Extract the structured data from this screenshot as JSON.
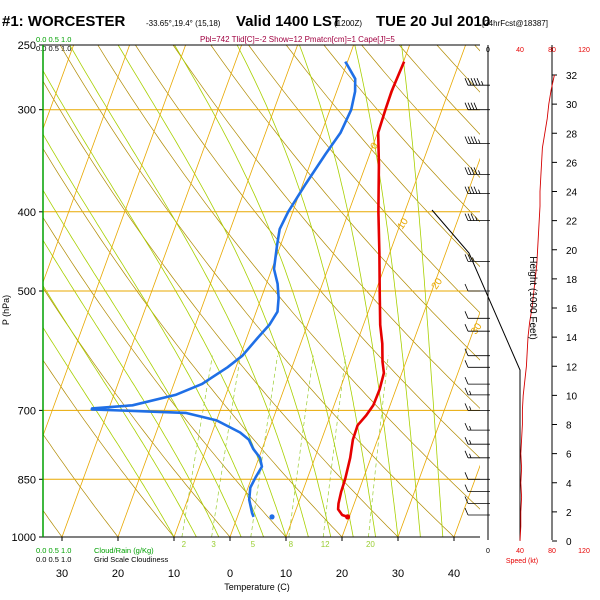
{
  "title": {
    "station": "#1: WORCESTER",
    "coords": "-33.65°,19.4° (15,18)",
    "valid": "Valid 1400 LST",
    "utc": "(1200Z)",
    "date": "TUE 20 Jul 2010",
    "forecast": "[24hrFcst@18387]",
    "indices": "Pbl=742 Tlid[C]=-2 Show=12 Pmatcn[cm]=1 Cape[J]=5"
  },
  "colors": {
    "isobar": "#e8a800",
    "isotherm": "#e8a800",
    "dry_adiabat": "#b08a00",
    "moist_adiabat": "#a8d000",
    "mixing_ratio": "#9acd32",
    "temperature": "#e60000",
    "dewpoint": "#1f6fe6",
    "height_curve": "#d40000",
    "cloud_scale": "#00a000"
  },
  "top_scales": [
    {
      "key": "water",
      "label": "0.0   0.5   1.0",
      "color": "#00a000"
    },
    {
      "key": "cloud",
      "label": "0.0   0.5   1.0",
      "color": "#000000"
    }
  ],
  "bottom_scales": [
    {
      "key": "water",
      "label": "0.0   0.5   1.0",
      "color": "#00a000"
    },
    {
      "key": "cloud",
      "label": "0.0   0.5   1.0",
      "color": "#000000"
    }
  ],
  "bottom_legend": {
    "cloud_water": "Cloud/Rain (g/Kg)",
    "grid_scale": "Grid Scale Cloudiness"
  },
  "speed_axis": {
    "top_ticks": [
      "0",
      "40",
      "80",
      "120"
    ],
    "bottom_ticks": [
      "0",
      "40",
      "80",
      "120"
    ],
    "top_colors": [
      "#000000",
      "#e60000",
      "#e60000",
      "#e60000"
    ],
    "label": "Speed (kt)"
  },
  "chart_data": {
    "type": "line",
    "xlabel": "Temperature (C)",
    "ylabel": "P (hPa)",
    "y2label": "Height (1000 Feet)",
    "x_ticks": [
      "30",
      "20",
      "10",
      "0",
      "10",
      "20",
      "30",
      "40"
    ],
    "x_tick_values": [
      -30,
      -20,
      -10,
      0,
      10,
      20,
      30,
      40
    ],
    "y_ticks": [
      "250",
      "300",
      "400",
      "500",
      "700",
      "850",
      "1000"
    ],
    "y_tick_values": [
      250,
      300,
      400,
      500,
      700,
      850,
      1000
    ],
    "y2_ticks": [
      "0",
      "2",
      "4",
      "6",
      "8",
      "10",
      "12",
      "14",
      "16",
      "18",
      "20",
      "22",
      "24",
      "26",
      "28",
      "30",
      "32"
    ],
    "xlim": [
      -33,
      47
    ],
    "ylim": [
      1000,
      250
    ],
    "y_scale": "log",
    "isotherm_labels": [
      {
        "t": -30,
        "label": "-30"
      },
      {
        "t": -20,
        "label": "-20"
      },
      {
        "t": -10,
        "label": "-10"
      },
      {
        "t": 0,
        "label": "0"
      },
      {
        "t": 10,
        "label": "10"
      },
      {
        "t": 20,
        "label": "20"
      },
      {
        "t": 30,
        "label": "30"
      }
    ],
    "mixing_ratio_labels": [
      "2",
      "3",
      "5",
      "8",
      "12",
      "20"
    ],
    "mixing_ratio_values": [
      2,
      3,
      5,
      8,
      12,
      20
    ],
    "series": [
      {
        "key": "temperature",
        "points": [
          [
            945,
            19.7
          ],
          [
            940,
            18.6
          ],
          [
            925,
            17.5
          ],
          [
            910,
            17.2
          ],
          [
            880,
            16.9
          ],
          [
            850,
            16.8
          ],
          [
            800,
            16.3
          ],
          [
            760,
            15.6
          ],
          [
            730,
            15.5
          ],
          [
            710,
            16.4
          ],
          [
            690,
            17.0
          ],
          [
            660,
            17.1
          ],
          [
            630,
            16.8
          ],
          [
            610,
            15.8
          ],
          [
            580,
            14.6
          ],
          [
            550,
            13.0
          ],
          [
            500,
            10.7
          ],
          [
            450,
            8.2
          ],
          [
            400,
            5.3
          ],
          [
            350,
            2.3
          ],
          [
            320,
            0.1
          ],
          [
            300,
            -0.1
          ],
          [
            285,
            -0.2
          ],
          [
            270,
            0.0
          ],
          [
            262,
            0.1
          ]
        ]
      },
      {
        "key": "dewpoint",
        "points": [
          [
            945,
            2.9
          ],
          [
            935,
            2.4
          ],
          [
            900,
            1.0
          ],
          [
            870,
            0.4
          ],
          [
            845,
            0.7
          ],
          [
            820,
            1.1
          ],
          [
            800,
            0.2
          ],
          [
            780,
            -1.6
          ],
          [
            760,
            -3.0
          ],
          [
            745,
            -5.0
          ],
          [
            720,
            -10.0
          ],
          [
            705,
            -16.0
          ],
          [
            698,
            -33.0
          ],
          [
            696,
            -33.0
          ],
          [
            690,
            -26.0
          ],
          [
            670,
            -19.0
          ],
          [
            650,
            -15.0
          ],
          [
            620,
            -11.5
          ],
          [
            600,
            -9.6
          ],
          [
            570,
            -8.0
          ],
          [
            550,
            -6.8
          ],
          [
            530,
            -6.2
          ],
          [
            510,
            -6.9
          ],
          [
            490,
            -8.0
          ],
          [
            470,
            -9.6
          ],
          [
            440,
            -10.6
          ],
          [
            420,
            -11.2
          ],
          [
            400,
            -10.8
          ],
          [
            370,
            -9.5
          ],
          [
            340,
            -7.9
          ],
          [
            320,
            -6.6
          ],
          [
            300,
            -6.2
          ],
          [
            285,
            -6.7
          ],
          [
            275,
            -7.5
          ],
          [
            265,
            -9.7
          ],
          [
            262,
            -10.4
          ]
        ]
      }
    ],
    "surface_dewpoint": [
      945,
      6.2
    ],
    "height_curve_speed": [
      [
        0,
        40
      ],
      [
        1,
        41
      ],
      [
        2,
        41
      ],
      [
        3,
        42
      ],
      [
        4,
        41
      ],
      [
        5,
        42
      ],
      [
        6,
        41
      ],
      [
        7,
        42
      ],
      [
        8,
        43
      ],
      [
        9,
        43
      ],
      [
        10,
        44
      ],
      [
        11,
        46
      ],
      [
        12,
        48
      ],
      [
        13,
        49
      ],
      [
        14,
        50
      ],
      [
        15,
        52
      ],
      [
        16,
        55
      ],
      [
        17,
        57
      ],
      [
        18,
        59
      ],
      [
        19,
        61
      ],
      [
        20,
        62
      ],
      [
        21,
        63
      ],
      [
        22,
        64
      ],
      [
        23,
        65
      ],
      [
        24,
        65
      ],
      [
        25,
        66
      ],
      [
        26,
        67
      ],
      [
        27,
        68
      ],
      [
        28,
        71
      ],
      [
        29,
        74
      ],
      [
        30,
        76
      ],
      [
        31,
        79
      ],
      [
        32,
        83
      ]
    ],
    "wind_barbs": [
      {
        "p": 280,
        "dir": 270,
        "spd": 45
      },
      {
        "p": 300,
        "dir": 270,
        "spd": 40
      },
      {
        "p": 330,
        "dir": 270,
        "spd": 35
      },
      {
        "p": 360,
        "dir": 270,
        "spd": 35
      },
      {
        "p": 380,
        "dir": 270,
        "spd": 35
      },
      {
        "p": 410,
        "dir": 270,
        "spd": 25
      },
      {
        "p": 460,
        "dir": 280,
        "spd": 15
      },
      {
        "p": 500,
        "dir": 300,
        "spd": 10
      },
      {
        "p": 540,
        "dir": 320,
        "spd": 10
      },
      {
        "p": 560,
        "dir": 330,
        "spd": 10
      },
      {
        "p": 600,
        "dir": 340,
        "spd": 10
      },
      {
        "p": 620,
        "dir": 330,
        "spd": 10
      },
      {
        "p": 650,
        "dir": 320,
        "spd": 10
      },
      {
        "p": 670,
        "dir": 300,
        "spd": 5
      },
      {
        "p": 700,
        "dir": 270,
        "spd": 5
      },
      {
        "p": 740,
        "dir": 90,
        "spd": 5
      },
      {
        "p": 770,
        "dir": 100,
        "spd": 5
      },
      {
        "p": 800,
        "dir": 120,
        "spd": 5
      },
      {
        "p": 850,
        "dir": 130,
        "spd": 10
      },
      {
        "p": 880,
        "dir": 140,
        "spd": 10
      },
      {
        "p": 910,
        "dir": 140,
        "spd": 10
      },
      {
        "p": 940,
        "dir": 140,
        "spd": 10
      }
    ]
  }
}
